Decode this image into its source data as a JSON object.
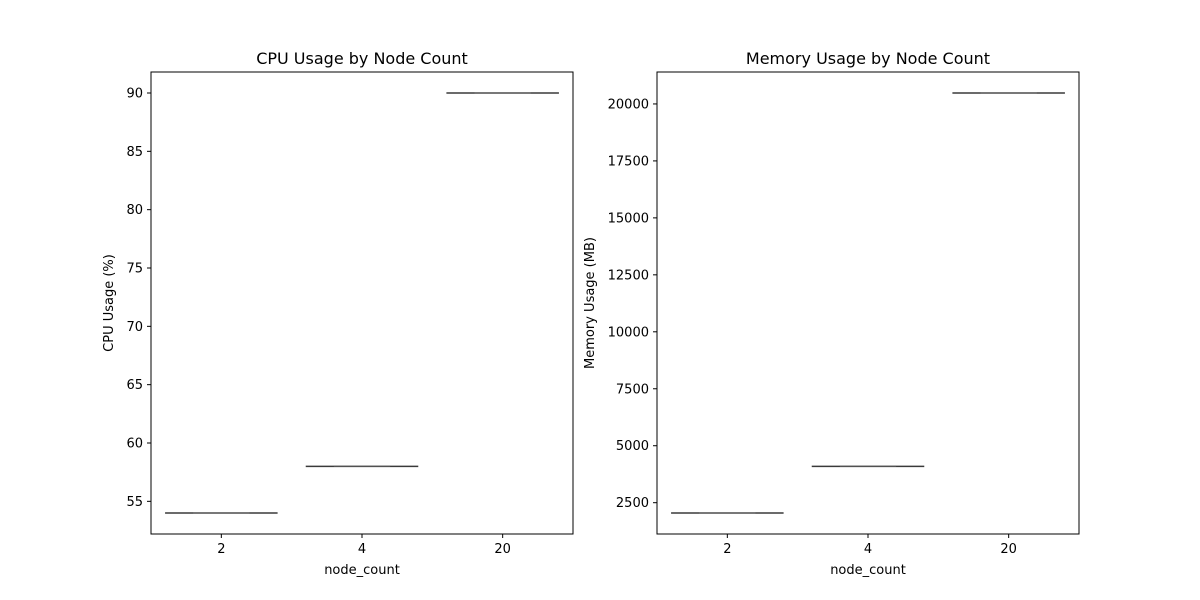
{
  "chart_data": [
    {
      "type": "box",
      "title": "CPU Usage by Node Count",
      "xlabel": "node_count",
      "ylabel": "CPU Usage (%)",
      "categories": [
        "2",
        "4",
        "20"
      ],
      "values": [
        54,
        58,
        90
      ],
      "ylim": [
        52.2,
        91.8
      ],
      "yticks": [
        55,
        60,
        65,
        70,
        75,
        80,
        85,
        90
      ],
      "grid": false,
      "box_color": "#3a3a3a"
    },
    {
      "type": "box",
      "title": "Memory Usage by Node Count",
      "xlabel": "node_count",
      "ylabel": "Memory Usage (MB)",
      "categories": [
        "2",
        "4",
        "20"
      ],
      "values": [
        2048,
        4096,
        20480
      ],
      "ylim": [
        1126,
        21402
      ],
      "yticks": [
        2500,
        5000,
        7500,
        10000,
        12500,
        15000,
        17500,
        20000
      ],
      "grid": false,
      "box_color": "#3a3a3a"
    }
  ]
}
